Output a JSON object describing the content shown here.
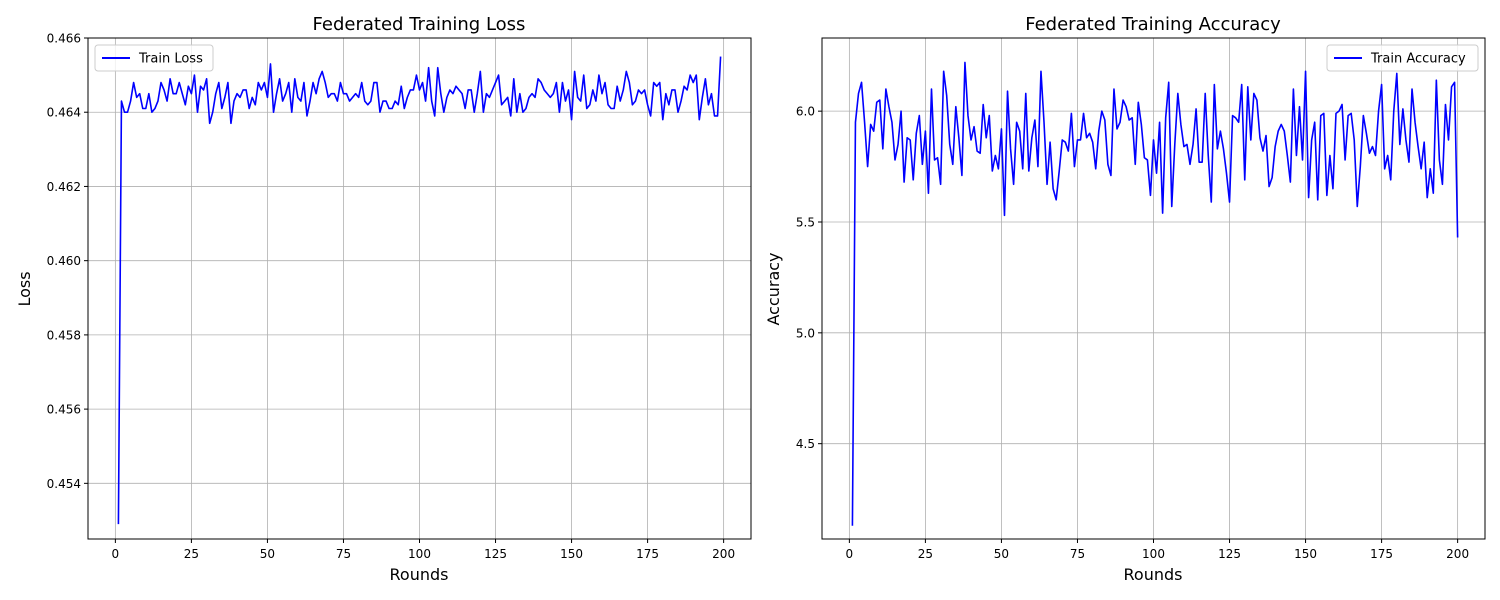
{
  "chart_data": [
    {
      "type": "line",
      "title": "Federated Training Loss",
      "xlabel": "Rounds",
      "ylabel": "Loss",
      "xlim": [
        -9,
        209
      ],
      "ylim": [
        0.4525,
        0.466
      ],
      "xticks": [
        0,
        25,
        50,
        75,
        100,
        125,
        150,
        175,
        200
      ],
      "yticks": [
        0.454,
        0.456,
        0.458,
        0.46,
        0.462,
        0.464,
        0.466
      ],
      "ytick_labels": [
        "0.454",
        "0.456",
        "0.458",
        "0.460",
        "0.462",
        "0.464",
        "0.466"
      ],
      "grid": true,
      "legend_position": "upper-left",
      "series": [
        {
          "name": "Train Loss",
          "color": "#0000ff",
          "x_start": 1,
          "x_step": 1,
          "values": [
            0.4529,
            0.4643,
            0.464,
            0.464,
            0.4643,
            0.4648,
            0.4644,
            0.4645,
            0.4641,
            0.4641,
            0.4645,
            0.464,
            0.4641,
            0.4643,
            0.4648,
            0.4646,
            0.4643,
            0.4649,
            0.4645,
            0.4645,
            0.4648,
            0.4645,
            0.4642,
            0.4647,
            0.4645,
            0.465,
            0.464,
            0.4647,
            0.4646,
            0.4649,
            0.4637,
            0.464,
            0.4645,
            0.4648,
            0.4641,
            0.4644,
            0.4648,
            0.4637,
            0.4643,
            0.4645,
            0.4644,
            0.4646,
            0.4646,
            0.4641,
            0.4644,
            0.4642,
            0.4648,
            0.4646,
            0.4648,
            0.4644,
            0.4653,
            0.464,
            0.4645,
            0.4649,
            0.4643,
            0.4645,
            0.4648,
            0.464,
            0.4649,
            0.4644,
            0.4643,
            0.4648,
            0.4639,
            0.4643,
            0.4648,
            0.4645,
            0.4649,
            0.4651,
            0.4648,
            0.4644,
            0.4645,
            0.4645,
            0.4643,
            0.4648,
            0.4645,
            0.4645,
            0.4643,
            0.4644,
            0.4645,
            0.4644,
            0.4648,
            0.4643,
            0.4642,
            0.4643,
            0.4648,
            0.4648,
            0.464,
            0.4643,
            0.4643,
            0.4641,
            0.4641,
            0.4643,
            0.4642,
            0.4647,
            0.4641,
            0.4644,
            0.4646,
            0.4646,
            0.465,
            0.4646,
            0.4648,
            0.4643,
            0.4652,
            0.4643,
            0.4639,
            0.4652,
            0.4645,
            0.464,
            0.4644,
            0.4646,
            0.4645,
            0.4647,
            0.4646,
            0.4645,
            0.4641,
            0.4646,
            0.4646,
            0.464,
            0.4645,
            0.4651,
            0.464,
            0.4645,
            0.4644,
            0.4646,
            0.4648,
            0.465,
            0.4642,
            0.4643,
            0.4644,
            0.4639,
            0.4649,
            0.464,
            0.4645,
            0.464,
            0.4641,
            0.4644,
            0.4645,
            0.4644,
            0.4649,
            0.4648,
            0.4646,
            0.4645,
            0.4644,
            0.4645,
            0.4648,
            0.464,
            0.4648,
            0.4643,
            0.4646,
            0.4638,
            0.4651,
            0.4644,
            0.4643,
            0.465,
            0.4641,
            0.4642,
            0.4646,
            0.4643,
            0.465,
            0.4645,
            0.4648,
            0.4642,
            0.4641,
            0.4641,
            0.4647,
            0.4643,
            0.4646,
            0.4651,
            0.4648,
            0.4642,
            0.4643,
            0.4646,
            0.4645,
            0.4646,
            0.4642,
            0.4639,
            0.4648,
            0.4647,
            0.4648,
            0.4638,
            0.4645,
            0.4642,
            0.4646,
            0.4646,
            0.464,
            0.4643,
            0.4647,
            0.4646,
            0.465,
            0.4648,
            0.465,
            0.4638,
            0.4644,
            0.4649,
            0.4642,
            0.4645,
            0.4639,
            0.4639,
            0.4655
          ]
        }
      ]
    },
    {
      "type": "line",
      "title": "Federated Training Accuracy",
      "xlabel": "Rounds",
      "ylabel": "Accuracy",
      "xlim": [
        -9,
        209
      ],
      "ylim": [
        4.07,
        6.33
      ],
      "xticks": [
        0,
        25,
        50,
        75,
        100,
        125,
        150,
        175,
        200
      ],
      "yticks": [
        4.5,
        5.0,
        5.5,
        6.0
      ],
      "ytick_labels": [
        "4.5",
        "5.0",
        "5.5",
        "6.0"
      ],
      "grid": true,
      "legend_position": "upper-right",
      "series": [
        {
          "name": "Train Accuracy",
          "color": "#0000ff",
          "x_start": 1,
          "x_step": 1,
          "values": [
            4.13,
            5.95,
            6.08,
            6.13,
            5.95,
            5.75,
            5.94,
            5.91,
            6.04,
            6.05,
            5.83,
            6.1,
            6.02,
            5.95,
            5.78,
            5.85,
            6.0,
            5.68,
            5.88,
            5.87,
            5.69,
            5.9,
            5.98,
            5.76,
            5.91,
            5.63,
            6.1,
            5.78,
            5.79,
            5.67,
            6.18,
            6.07,
            5.85,
            5.76,
            6.02,
            5.88,
            5.71,
            6.22,
            5.98,
            5.87,
            5.93,
            5.82,
            5.81,
            6.03,
            5.88,
            5.98,
            5.73,
            5.8,
            5.74,
            5.92,
            5.53,
            6.09,
            5.83,
            5.67,
            5.95,
            5.91,
            5.74,
            6.08,
            5.73,
            5.88,
            5.96,
            5.75,
            6.18,
            5.95,
            5.67,
            5.86,
            5.65,
            5.6,
            5.73,
            5.87,
            5.86,
            5.82,
            5.99,
            5.75,
            5.87,
            5.87,
            5.99,
            5.88,
            5.9,
            5.86,
            5.74,
            5.91,
            6.0,
            5.96,
            5.76,
            5.71,
            6.1,
            5.92,
            5.95,
            6.05,
            6.02,
            5.96,
            5.97,
            5.76,
            6.04,
            5.94,
            5.79,
            5.78,
            5.62,
            5.87,
            5.72,
            5.95,
            5.54,
            5.97,
            6.13,
            5.57,
            5.85,
            6.08,
            5.94,
            5.84,
            5.85,
            5.76,
            5.85,
            6.01,
            5.77,
            5.77,
            6.08,
            5.8,
            5.59,
            6.12,
            5.83,
            5.91,
            5.83,
            5.72,
            5.59,
            5.98,
            5.97,
            5.95,
            6.12,
            5.69,
            6.11,
            5.87,
            6.08,
            6.05,
            5.88,
            5.82,
            5.89,
            5.66,
            5.7,
            5.84,
            5.91,
            5.94,
            5.91,
            5.8,
            5.68,
            6.1,
            5.8,
            6.02,
            5.78,
            6.18,
            5.61,
            5.87,
            5.95,
            5.6,
            5.98,
            5.99,
            5.62,
            5.8,
            5.65,
            5.99,
            6.0,
            6.03,
            5.78,
            5.98,
            5.99,
            5.87,
            5.57,
            5.75,
            5.98,
            5.9,
            5.81,
            5.84,
            5.8,
            6.0,
            6.12,
            5.74,
            5.8,
            5.69,
            6.0,
            6.17,
            5.85,
            6.01,
            5.87,
            5.77,
            6.1,
            5.95,
            5.84,
            5.74,
            5.86,
            5.61,
            5.74,
            5.63,
            6.14,
            5.78,
            5.67,
            6.03,
            5.87,
            6.11,
            6.13,
            5.43
          ]
        }
      ]
    }
  ]
}
